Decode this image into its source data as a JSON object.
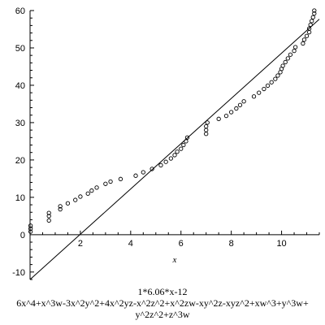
{
  "chart_data": {
    "type": "scatter",
    "title": "",
    "xlabel": "x",
    "ylabel": "",
    "xlim": [
      0,
      11.5
    ],
    "ylim": [
      -12,
      60
    ],
    "x_ticks": [
      "2",
      "4",
      "6",
      "8",
      "10"
    ],
    "y_ticks": [
      "-10",
      "0",
      "10",
      "20",
      "30",
      "40",
      "50",
      "60"
    ],
    "grid": false,
    "fit_line": {
      "slope": 6.06,
      "intercept": -12,
      "x_range": [
        0,
        11.5
      ]
    },
    "series": [
      {
        "marker": "open-circle",
        "points": [
          [
            0.02,
            0.8
          ],
          [
            0.02,
            1.6
          ],
          [
            0.02,
            2.4
          ],
          [
            0.75,
            3.8
          ],
          [
            0.75,
            5.0
          ],
          [
            0.75,
            5.8
          ],
          [
            1.2,
            6.8
          ],
          [
            1.2,
            7.6
          ],
          [
            1.5,
            8.4
          ],
          [
            1.8,
            9.3
          ],
          [
            2.0,
            10.2
          ],
          [
            2.3,
            11.0
          ],
          [
            2.45,
            11.8
          ],
          [
            2.65,
            12.6
          ],
          [
            3.0,
            13.6
          ],
          [
            3.2,
            14.2
          ],
          [
            3.6,
            14.9
          ],
          [
            4.2,
            15.8
          ],
          [
            4.5,
            16.7
          ],
          [
            4.85,
            17.6
          ],
          [
            5.2,
            18.6
          ],
          [
            5.4,
            19.5
          ],
          [
            5.6,
            20.4
          ],
          [
            5.75,
            21.3
          ],
          [
            5.85,
            22.2
          ],
          [
            6.0,
            23.0
          ],
          [
            6.1,
            24.0
          ],
          [
            6.2,
            25.0
          ],
          [
            6.25,
            26.0
          ],
          [
            7.0,
            27.0
          ],
          [
            7.0,
            28.0
          ],
          [
            7.0,
            29.0
          ],
          [
            7.05,
            30.0
          ],
          [
            7.5,
            31.0
          ],
          [
            7.8,
            31.8
          ],
          [
            8.0,
            32.8
          ],
          [
            8.2,
            33.8
          ],
          [
            8.35,
            34.7
          ],
          [
            8.5,
            35.7
          ],
          [
            8.9,
            37.0
          ],
          [
            9.1,
            38.0
          ],
          [
            9.3,
            39.0
          ],
          [
            9.45,
            39.9
          ],
          [
            9.6,
            40.8
          ],
          [
            9.75,
            41.7
          ],
          [
            9.85,
            42.6
          ],
          [
            9.95,
            43.5
          ],
          [
            10.0,
            44.4
          ],
          [
            10.05,
            45.2
          ],
          [
            10.15,
            46.2
          ],
          [
            10.25,
            47.2
          ],
          [
            10.35,
            48.2
          ],
          [
            10.5,
            49.2
          ],
          [
            10.55,
            50.2
          ],
          [
            10.85,
            51.2
          ],
          [
            10.9,
            52.2
          ],
          [
            11.0,
            53.2
          ],
          [
            11.1,
            54.2
          ],
          [
            11.1,
            55.2
          ],
          [
            11.15,
            56.2
          ],
          [
            11.2,
            57.2
          ],
          [
            11.25,
            58.2
          ],
          [
            11.3,
            59.2
          ],
          [
            11.3,
            60.0
          ]
        ]
      }
    ],
    "caption": [
      "1*6.06*x-12",
      "6x^4+x^3w-3x^2y^2+4x^2yz-x^2z^2+x^2zw-xy^2z-xyz^2+xw^3+y^3w+",
      "y^2z^2+z^3w"
    ]
  }
}
